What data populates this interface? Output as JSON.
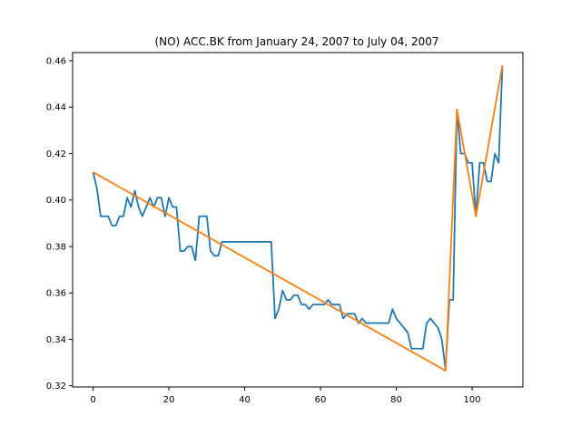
{
  "chart_data": {
    "type": "line",
    "title": "(NO) ACC.BK from January 24, 2007 to July 04, 2007",
    "xlabel": "",
    "ylabel": "",
    "xlim": [
      -5.4,
      113.4
    ],
    "ylim": [
      0.3195,
      0.4635
    ],
    "x_ticks": [
      0,
      20,
      40,
      60,
      80,
      100
    ],
    "y_ticks": [
      0.32,
      0.34,
      0.36,
      0.38,
      0.4,
      0.42,
      0.44,
      0.46
    ],
    "y_tick_labels": [
      "0.32",
      "0.34",
      "0.36",
      "0.38",
      "0.40",
      "0.42",
      "0.44",
      "0.46"
    ],
    "grid": false,
    "series": [
      {
        "color": "#1f77b4",
        "x": [
          0,
          1,
          2,
          3,
          4,
          5,
          6,
          7,
          8,
          9,
          10,
          11,
          12,
          13,
          14,
          15,
          16,
          17,
          18,
          19,
          20,
          21,
          22,
          23,
          24,
          25,
          26,
          27,
          28,
          29,
          30,
          31,
          32,
          33,
          34,
          35,
          36,
          37,
          38,
          39,
          40,
          41,
          42,
          43,
          44,
          45,
          46,
          47,
          48,
          49,
          50,
          51,
          52,
          53,
          54,
          55,
          56,
          57,
          58,
          59,
          60,
          61,
          62,
          63,
          64,
          65,
          66,
          67,
          68,
          69,
          70,
          71,
          72,
          73,
          74,
          75,
          76,
          77,
          78,
          79,
          80,
          81,
          82,
          83,
          84,
          85,
          86,
          87,
          88,
          89,
          90,
          91,
          92,
          93,
          94,
          95,
          96,
          97,
          98,
          99,
          100,
          101,
          102,
          103,
          104,
          105,
          106,
          107,
          108
        ],
        "y": [
          0.412,
          0.405,
          0.393,
          0.393,
          0.393,
          0.389,
          0.389,
          0.393,
          0.393,
          0.401,
          0.397,
          0.404,
          0.397,
          0.393,
          0.397,
          0.401,
          0.397,
          0.401,
          0.401,
          0.393,
          0.401,
          0.397,
          0.397,
          0.378,
          0.378,
          0.38,
          0.38,
          0.374,
          0.393,
          0.393,
          0.393,
          0.378,
          0.376,
          0.376,
          0.382,
          0.382,
          0.382,
          0.382,
          0.382,
          0.382,
          0.382,
          0.382,
          0.382,
          0.382,
          0.382,
          0.382,
          0.382,
          0.382,
          0.349,
          0.353,
          0.361,
          0.357,
          0.357,
          0.359,
          0.359,
          0.355,
          0.355,
          0.353,
          0.355,
          0.355,
          0.355,
          0.355,
          0.357,
          0.355,
          0.355,
          0.355,
          0.349,
          0.351,
          0.351,
          0.351,
          0.347,
          0.349,
          0.347,
          0.347,
          0.347,
          0.347,
          0.347,
          0.347,
          0.347,
          0.353,
          0.349,
          0.347,
          0.345,
          0.343,
          0.336,
          0.336,
          0.336,
          0.336,
          0.347,
          0.349,
          0.347,
          0.345,
          0.34,
          0.327,
          0.357,
          0.357,
          0.439,
          0.42,
          0.42,
          0.416,
          0.416,
          0.393,
          0.416,
          0.416,
          0.408,
          0.408,
          0.42,
          0.416,
          0.458
        ]
      },
      {
        "color": "#ff7f0e",
        "x": [
          0,
          93,
          96,
          101,
          108
        ],
        "y": [
          0.412,
          0.3265,
          0.439,
          0.393,
          0.458
        ]
      }
    ]
  }
}
